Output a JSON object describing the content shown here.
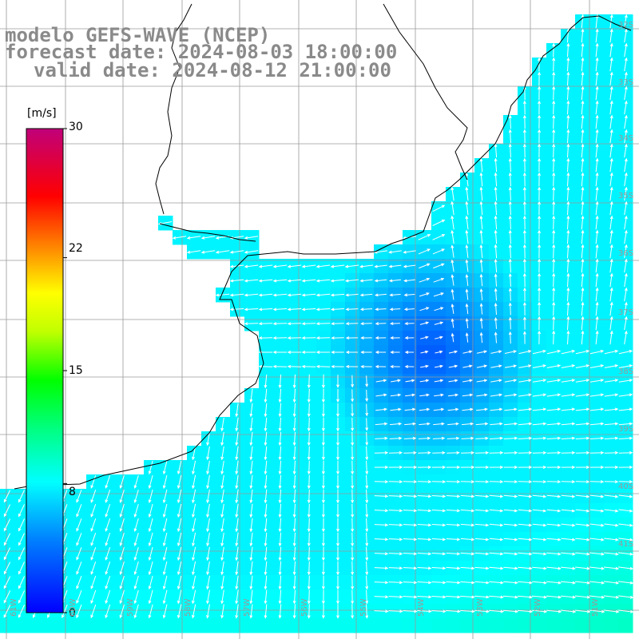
{
  "header": {
    "model": "modelo GEFS-WAVE (NCEP)",
    "forecast": "forecast date: 2024-08-03 18:00:00",
    "valid": "valid date: 2024-08-12 21:00:00"
  },
  "colorbar": {
    "unit": "[m/s]",
    "ticks": [
      "30",
      "22",
      "15",
      "8",
      "0"
    ],
    "min": 0,
    "max": 30
  },
  "grid": {
    "lat_labels": [
      "32S",
      "33S",
      "34S",
      "35S",
      "36S",
      "37S",
      "38S",
      "39S",
      "40S",
      "41S"
    ],
    "lon_labels": [
      "61W",
      "60W",
      "59W",
      "58W",
      "57W",
      "56W",
      "55W",
      "54W",
      "53W",
      "52W",
      "51W"
    ]
  },
  "colors": {
    "land": "#ffffff",
    "coast": "#000000",
    "grid": "#9a9a9a",
    "arrows": "#ffffff"
  },
  "map_data": {
    "field": "wind speed",
    "units": "m/s",
    "ocean_speed_range": [
      3,
      10
    ],
    "lat_range": [
      -41.2,
      -31.8
    ],
    "lon_range": [
      -61.3,
      -50.6
    ]
  }
}
